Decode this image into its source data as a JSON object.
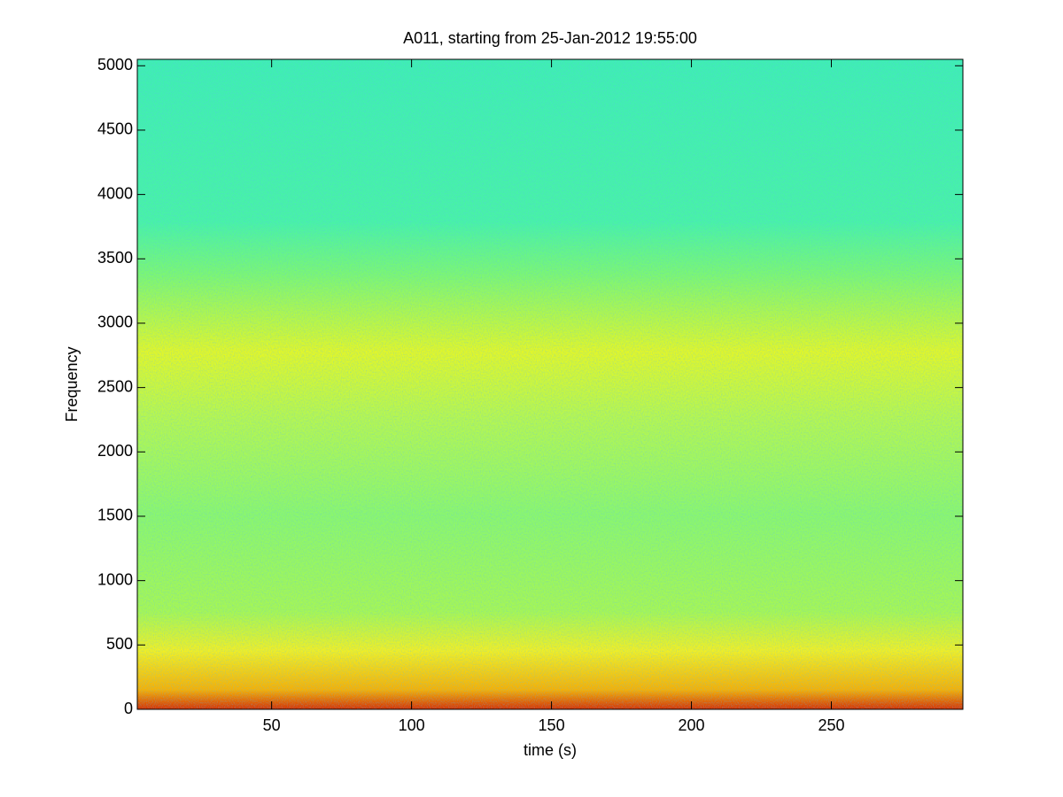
{
  "chart_data": {
    "type": "spectrogram",
    "title": "A011, starting from 25-Jan-2012 19:55:00",
    "xlabel": "time (s)",
    "ylabel": "Frequency",
    "xlim": [
      2,
      297
    ],
    "ylim": [
      0,
      5050
    ],
    "xticks": [
      50,
      100,
      150,
      200,
      250
    ],
    "yticks": [
      0,
      500,
      1000,
      1500,
      2000,
      2500,
      3000,
      3500,
      4000,
      4500,
      5000
    ]
  }
}
